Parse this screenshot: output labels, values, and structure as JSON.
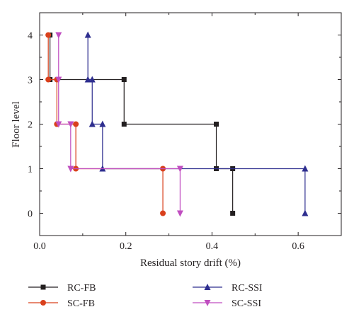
{
  "chart_data": {
    "type": "line",
    "xlabel": "Residual story drift (%)",
    "ylabel": "Floor level",
    "xlim": [
      0,
      0.7
    ],
    "ylim": [
      -0.5,
      4.5
    ],
    "x_ticks": [
      "0.0",
      "0.2",
      "0.4",
      "0.6"
    ],
    "y_ticks": [
      "0",
      "1",
      "2",
      "3",
      "4"
    ],
    "legend_position": "bottom",
    "grid": false,
    "series": [
      {
        "name": "RC-FB",
        "color": "#231f20",
        "marker": "square",
        "points": [
          [
            0.448,
            0
          ],
          [
            0.448,
            1
          ],
          [
            0.41,
            1
          ],
          [
            0.41,
            2
          ],
          [
            0.196,
            2
          ],
          [
            0.196,
            3
          ],
          [
            0.024,
            3
          ],
          [
            0.024,
            4
          ]
        ]
      },
      {
        "name": "SC-FB",
        "color": "#d9401c",
        "marker": "circle",
        "points": [
          [
            0.286,
            0
          ],
          [
            0.286,
            1
          ],
          [
            0.084,
            1
          ],
          [
            0.084,
            2
          ],
          [
            0.04,
            2
          ],
          [
            0.04,
            3
          ],
          [
            0.02,
            3
          ],
          [
            0.02,
            4
          ]
        ]
      },
      {
        "name": "RC-SSI",
        "color": "#2e2e8f",
        "marker": "triangle-up",
        "points": [
          [
            0.616,
            0
          ],
          [
            0.616,
            1
          ],
          [
            0.146,
            1
          ],
          [
            0.146,
            2
          ],
          [
            0.122,
            2
          ],
          [
            0.122,
            3
          ],
          [
            0.112,
            3
          ],
          [
            0.112,
            4
          ]
        ]
      },
      {
        "name": "SC-SSI",
        "color": "#c04ec0",
        "marker": "triangle-down",
        "points": [
          [
            0.326,
            0
          ],
          [
            0.326,
            1
          ],
          [
            0.072,
            1
          ],
          [
            0.072,
            2
          ],
          [
            0.044,
            2
          ],
          [
            0.044,
            3
          ],
          [
            0.044,
            4
          ]
        ]
      }
    ]
  }
}
